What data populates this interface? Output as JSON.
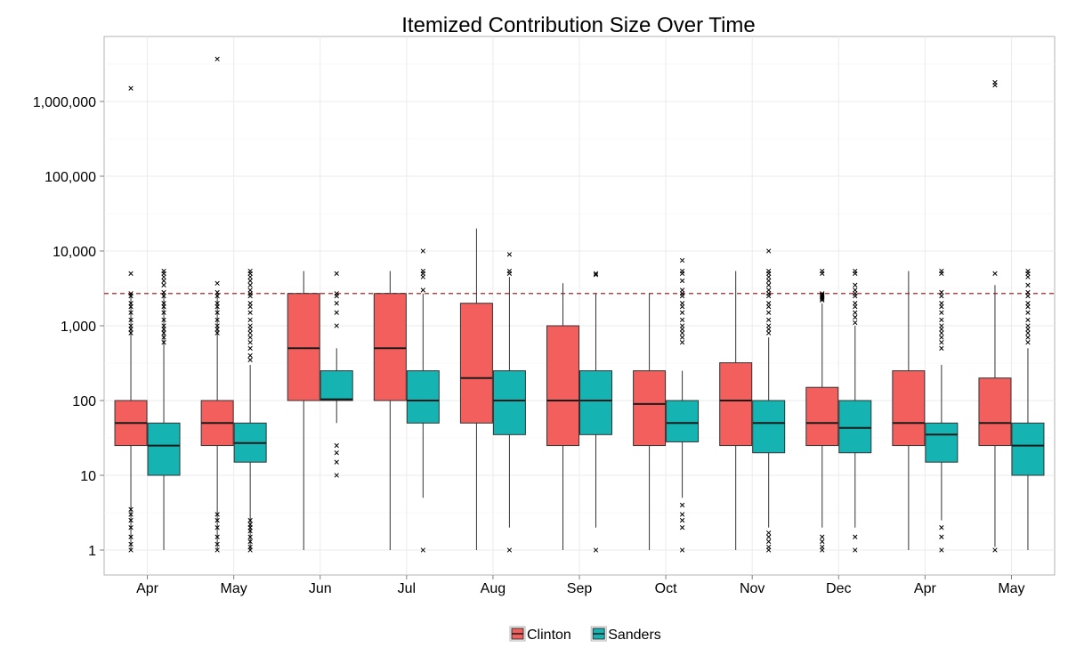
{
  "chart_data": {
    "type": "boxplot",
    "title": "Itemized Contribution Size Over Time",
    "xlabel": "",
    "ylabel": "",
    "y_scale": "log10",
    "ylim": [
      0.55,
      9000000
    ],
    "y_ticks": [
      {
        "value": 1,
        "label": "1"
      },
      {
        "value": 10,
        "label": "10"
      },
      {
        "value": 100,
        "label": "100"
      },
      {
        "value": 1000,
        "label": "1,000"
      },
      {
        "value": 10000,
        "label": "10,000"
      },
      {
        "value": 100000,
        "label": "100,000"
      },
      {
        "value": 1000000,
        "label": "1,000,000"
      }
    ],
    "grid": true,
    "legend_position": "bottom",
    "reference_line": {
      "value": 2700,
      "color": "#b22222",
      "style": "dashed"
    },
    "colors": {
      "Clinton": "#f25f5c",
      "Sanders": "#16b3b3"
    },
    "categories": [
      "Apr",
      "May",
      "Jun",
      "Jul",
      "Aug",
      "Sep",
      "Oct",
      "Nov",
      "Dec",
      "Apr",
      "May"
    ],
    "series": [
      {
        "name": "Clinton",
        "boxes": [
          {
            "q1": 25,
            "median": 50,
            "q3": 100,
            "whisker_low": 1,
            "whisker_high": 2700,
            "outliers": [
              1500000,
              5000,
              2700,
              2500,
              2000,
              1800,
              1500,
              1200,
              1000,
              900,
              800,
              3.5,
              3,
              2.5,
              2,
              1.5,
              1.2,
              1
            ]
          },
          {
            "q1": 25,
            "median": 50,
            "q3": 100,
            "whisker_low": 1,
            "whisker_high": 2700,
            "outliers": [
              3700000,
              3700,
              2800,
              2500,
              2000,
              1800,
              1500,
              1200,
              1000,
              900,
              800,
              3,
              2.5,
              2,
              1.5,
              1.2,
              1
            ]
          },
          {
            "q1": 100,
            "median": 500,
            "q3": 2700,
            "whisker_low": 1,
            "whisker_high": 5400,
            "outliers": []
          },
          {
            "q1": 100,
            "median": 500,
            "q3": 2700,
            "whisker_low": 1,
            "whisker_high": 5400,
            "outliers": []
          },
          {
            "q1": 50,
            "median": 200,
            "q3": 2000,
            "whisker_low": 1,
            "whisker_high": 20000,
            "outliers": []
          },
          {
            "q1": 25,
            "median": 100,
            "q3": 1000,
            "whisker_low": 1,
            "whisker_high": 3700,
            "outliers": []
          },
          {
            "q1": 25,
            "median": 90,
            "q3": 250,
            "whisker_low": 1,
            "whisker_high": 2700,
            "outliers": []
          },
          {
            "q1": 25,
            "median": 100,
            "q3": 320,
            "whisker_low": 1,
            "whisker_high": 5400,
            "outliers": []
          },
          {
            "q1": 25,
            "median": 50,
            "q3": 150,
            "whisker_low": 2,
            "whisker_high": 2000,
            "outliers": [
              5400,
              5000,
              2700,
              2600,
              2500,
              2400,
              2300,
              2200,
              1.5,
              1.3,
              1.1,
              1
            ]
          },
          {
            "q1": 25,
            "median": 50,
            "q3": 250,
            "whisker_low": 1,
            "whisker_high": 5400,
            "outliers": []
          },
          {
            "q1": 25,
            "median": 50,
            "q3": 200,
            "whisker_low": 1.1,
            "whisker_high": 3500,
            "outliers": [
              1800000,
              1650000,
              5000,
              1
            ]
          }
        ]
      },
      {
        "name": "Sanders",
        "boxes": [
          {
            "q1": 10,
            "median": 25,
            "q3": 50,
            "whisker_low": 1,
            "whisker_high": 2700,
            "outliers": [
              5400,
              5000,
              4500,
              4000,
              3500,
              2800,
              2500,
              2000,
              1800,
              1500,
              1200,
              1000,
              900,
              800,
              700,
              600
            ]
          },
          {
            "q1": 15,
            "median": 27,
            "q3": 50,
            "whisker_low": 1,
            "whisker_high": 300,
            "outliers": [
              5400,
              5000,
              4500,
              4000,
              3500,
              3000,
              2700,
              2500,
              2000,
              1800,
              1500,
              1200,
              1000,
              900,
              800,
              700,
              600,
              500,
              400,
              350,
              2.5,
              2.2,
              2,
              1.8,
              1.5,
              1.3,
              1.1,
              1
            ]
          },
          {
            "q1": 100,
            "median": 104,
            "q3": 250,
            "whisker_low": 50,
            "whisker_high": 500,
            "outliers": [
              5000,
              2700,
              2500,
              2000,
              1500,
              1000,
              25,
              20,
              15,
              10
            ]
          },
          {
            "q1": 50,
            "median": 100,
            "q3": 250,
            "whisker_low": 5,
            "whisker_high": 2700,
            "outliers": [
              10000,
              5400,
              5000,
              4500,
              3000,
              1
            ]
          },
          {
            "q1": 35,
            "median": 100,
            "q3": 250,
            "whisker_low": 2,
            "whisker_high": 4500,
            "outliers": [
              9000,
              5400,
              5000,
              1
            ]
          },
          {
            "q1": 35,
            "median": 100,
            "q3": 250,
            "whisker_low": 2,
            "whisker_high": 2700,
            "outliers": [
              5000,
              4800,
              1
            ]
          },
          {
            "q1": 28,
            "median": 50,
            "q3": 100,
            "whisker_low": 5,
            "whisker_high": 250,
            "outliers": [
              7500,
              5400,
              5000,
              4000,
              3000,
              2700,
              2500,
              2000,
              1800,
              1500,
              1200,
              1000,
              900,
              800,
              700,
              600,
              4,
              3,
              2.5,
              2,
              1
            ]
          },
          {
            "q1": 20,
            "median": 50,
            "q3": 100,
            "whisker_low": 2,
            "whisker_high": 700,
            "outliers": [
              10000,
              5400,
              5000,
              4500,
              4000,
              3500,
              3000,
              2700,
              2500,
              2000,
              1800,
              1500,
              1200,
              1000,
              900,
              800,
              1.7,
              1.5,
              1.3,
              1.1,
              1
            ]
          },
          {
            "q1": 20,
            "median": 43,
            "q3": 100,
            "whisker_low": 2,
            "whisker_high": 1000,
            "outliers": [
              5400,
              5000,
              3500,
              3000,
              2700,
              2500,
              2000,
              1800,
              1500,
              1300,
              1100,
              1.5,
              1
            ]
          },
          {
            "q1": 15,
            "median": 35,
            "q3": 50,
            "whisker_low": 2.5,
            "whisker_high": 300,
            "outliers": [
              5400,
              5000,
              2800,
              2500,
              2000,
              1800,
              1500,
              1200,
              1000,
              900,
              800,
              700,
              600,
              500,
              2,
              1.5,
              1
            ]
          },
          {
            "q1": 10,
            "median": 25,
            "q3": 50,
            "whisker_low": 1,
            "whisker_high": 500,
            "outliers": [
              5400,
              5000,
              4500,
              3500,
              2800,
              2500,
              2000,
              1800,
              1500,
              1200,
              1000,
              900,
              800,
              700,
              600
            ]
          }
        ]
      }
    ],
    "legend": [
      "Clinton",
      "Sanders"
    ]
  }
}
